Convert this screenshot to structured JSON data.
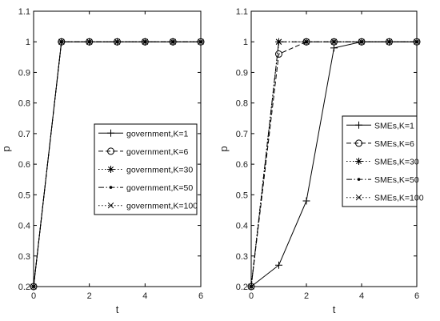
{
  "chart_data": [
    {
      "type": "line",
      "xlabel": "t",
      "ylabel": "p",
      "xlim": [
        0,
        6
      ],
      "ylim": [
        0.2,
        1.1
      ],
      "xticks": [
        "0",
        "2",
        "4",
        "6"
      ],
      "yticks": [
        "0.2",
        "0.3",
        "0.4",
        "0.5",
        "0.6",
        "0.7",
        "0.8",
        "0.9",
        "1",
        "1.1"
      ],
      "legend_position": "center-right",
      "grid": false,
      "x": [
        0,
        1,
        2,
        3,
        4,
        5,
        6
      ],
      "series": [
        {
          "name": "government,K=1",
          "marker": "plus",
          "dash": "solid",
          "values": [
            0.2,
            1,
            1,
            1,
            1,
            1,
            1
          ]
        },
        {
          "name": "government,K=6",
          "marker": "circle",
          "dash": "dashed",
          "values": [
            0.2,
            1,
            1,
            1,
            1,
            1,
            1
          ]
        },
        {
          "name": "government,K=30",
          "marker": "star",
          "dash": "dotted",
          "values": [
            0.2,
            1,
            1,
            1,
            1,
            1,
            1
          ]
        },
        {
          "name": "government,K=50",
          "marker": "dot",
          "dash": "dashdot",
          "values": [
            0.2,
            1,
            1,
            1,
            1,
            1,
            1
          ]
        },
        {
          "name": "government,K=100",
          "marker": "x",
          "dash": "dotted",
          "values": [
            0.2,
            1,
            1,
            1,
            1,
            1,
            1
          ]
        }
      ]
    },
    {
      "type": "line",
      "xlabel": "t",
      "ylabel": "p",
      "xlim": [
        0,
        6
      ],
      "ylim": [
        0.2,
        1.1
      ],
      "xticks": [
        "0",
        "2",
        "4",
        "6"
      ],
      "yticks": [
        "0.2",
        "0.3",
        "0.4",
        "0.5",
        "0.6",
        "0.7",
        "0.8",
        "0.9",
        "1",
        "1.1"
      ],
      "legend_position": "center-right",
      "grid": false,
      "x": [
        0,
        1,
        2,
        3,
        4,
        5,
        6
      ],
      "series": [
        {
          "name": "SMEs,K=1",
          "marker": "plus",
          "dash": "solid",
          "values": [
            0.2,
            0.27,
            0.48,
            0.98,
            1,
            1,
            1
          ]
        },
        {
          "name": "SMEs,K=6",
          "marker": "circle",
          "dash": "dashed",
          "values": [
            0.2,
            0.96,
            1,
            1,
            1,
            1,
            1
          ]
        },
        {
          "name": "SMEs,K=30",
          "marker": "star",
          "dash": "dotted",
          "values": [
            0.2,
            1,
            1,
            1,
            1,
            1,
            1
          ]
        },
        {
          "name": "SMEs,K=50",
          "marker": "dot",
          "dash": "dashdot",
          "values": [
            0.2,
            1,
            1,
            1,
            1,
            1,
            1
          ]
        },
        {
          "name": "SMEs,K=100",
          "marker": "x",
          "dash": "dotted",
          "values": [
            0.2,
            1,
            1,
            1,
            1,
            1,
            1
          ]
        }
      ]
    }
  ]
}
